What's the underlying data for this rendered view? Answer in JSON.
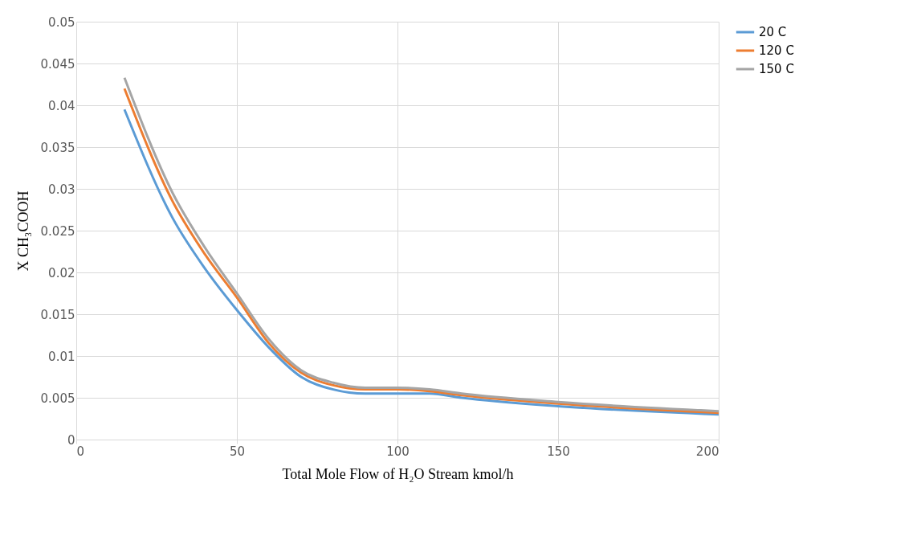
{
  "chart_data": {
    "type": "line",
    "xlabel": "Total Mole Flow of H₂O Stream kmol/h",
    "ylabel": "X CH₃COOH",
    "x": [
      15,
      30,
      40,
      50,
      60,
      70,
      80,
      90,
      100,
      110,
      120,
      150,
      200
    ],
    "series": [
      {
        "name": "20 C",
        "color": "#5b9bd5",
        "values": [
          0.0395,
          0.0265,
          0.0205,
          0.0155,
          0.011,
          0.0075,
          0.006,
          0.0055,
          0.0055,
          0.0055,
          0.005,
          0.004,
          0.003
        ]
      },
      {
        "name": "120 C",
        "color": "#ed7d31",
        "values": [
          0.042,
          0.0285,
          0.0222,
          0.017,
          0.0115,
          0.008,
          0.0065,
          0.006,
          0.006,
          0.0058,
          0.0053,
          0.0043,
          0.0032
        ]
      },
      {
        "name": "150 C",
        "color": "#a5a5a5",
        "values": [
          0.0433,
          0.0295,
          0.023,
          0.0175,
          0.012,
          0.0083,
          0.0068,
          0.0062,
          0.0062,
          0.006,
          0.0055,
          0.0045,
          0.0034
        ]
      }
    ],
    "xlim": [
      0,
      200
    ],
    "xticks": [
      0,
      50,
      100,
      150,
      200
    ],
    "ylim": [
      0,
      0.05
    ],
    "yticks": [
      0,
      0.005,
      0.01,
      0.015,
      0.02,
      0.025,
      0.03,
      0.035,
      0.04,
      0.045,
      0.05
    ],
    "grid": true,
    "legend": "right",
    "marker": "none",
    "line_style": "solid"
  }
}
